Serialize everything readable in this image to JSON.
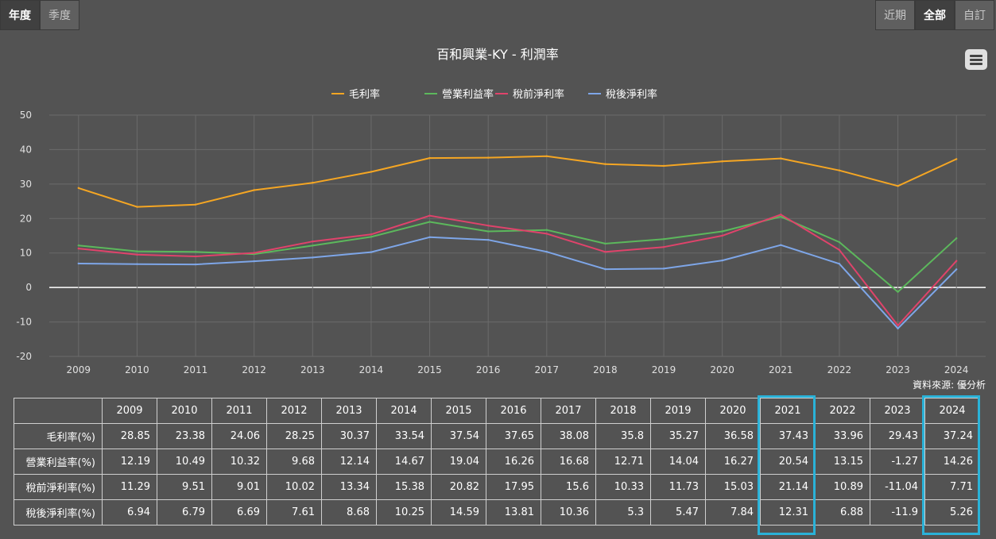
{
  "period_tabs": [
    "年度",
    "季度"
  ],
  "range_tabs": [
    "近期",
    "全部",
    "自訂"
  ],
  "source_text": "資料來源: 優分析",
  "chart_data": {
    "type": "line",
    "title": "百和興業-KY - 利潤率",
    "categories": [
      "2009",
      "2010",
      "2011",
      "2012",
      "2013",
      "2014",
      "2015",
      "2016",
      "2017",
      "2018",
      "2019",
      "2020",
      "2021",
      "2022",
      "2023",
      "2024"
    ],
    "ylim": [
      -20,
      50
    ],
    "yticks": [
      50,
      40,
      30,
      20,
      10,
      0,
      -10,
      -20
    ],
    "grid": true,
    "legend": "top-center",
    "series": [
      {
        "name": "毛利率",
        "color": "#f5a623",
        "values": [
          28.85,
          23.38,
          24.06,
          28.25,
          30.37,
          33.54,
          37.54,
          37.65,
          38.08,
          35.8,
          35.27,
          36.58,
          37.43,
          33.96,
          29.43,
          37.24
        ]
      },
      {
        "name": "營業利益率",
        "color": "#5cb85c",
        "values": [
          12.19,
          10.49,
          10.32,
          9.68,
          12.14,
          14.67,
          19.04,
          16.26,
          16.68,
          12.71,
          14.04,
          16.27,
          20.54,
          13.15,
          -1.27,
          14.26
        ]
      },
      {
        "name": "稅前淨利率",
        "color": "#e0436b",
        "values": [
          11.29,
          9.51,
          9.01,
          10.02,
          13.34,
          15.38,
          20.82,
          17.95,
          15.6,
          10.33,
          11.73,
          15.03,
          21.14,
          10.89,
          -11.04,
          7.71
        ]
      },
      {
        "name": "稅後淨利率",
        "color": "#7ea6e8",
        "values": [
          6.94,
          6.79,
          6.69,
          7.61,
          8.68,
          10.25,
          14.59,
          13.81,
          10.36,
          5.3,
          5.47,
          7.84,
          12.31,
          6.88,
          -11.9,
          5.26
        ]
      }
    ]
  },
  "table": {
    "years": [
      "2009",
      "2010",
      "2011",
      "2012",
      "2013",
      "2014",
      "2015",
      "2016",
      "2017",
      "2018",
      "2019",
      "2020",
      "2021",
      "2022",
      "2023",
      "2024"
    ],
    "rows": [
      {
        "label": "毛利率(%)",
        "values": [
          "28.85",
          "23.38",
          "24.06",
          "28.25",
          "30.37",
          "33.54",
          "37.54",
          "37.65",
          "38.08",
          "35.8",
          "35.27",
          "36.58",
          "37.43",
          "33.96",
          "29.43",
          "37.24"
        ]
      },
      {
        "label": "營業利益率(%)",
        "values": [
          "12.19",
          "10.49",
          "10.32",
          "9.68",
          "12.14",
          "14.67",
          "19.04",
          "16.26",
          "16.68",
          "12.71",
          "14.04",
          "16.27",
          "20.54",
          "13.15",
          "-1.27",
          "14.26"
        ]
      },
      {
        "label": "稅前淨利率(%)",
        "values": [
          "11.29",
          "9.51",
          "9.01",
          "10.02",
          "13.34",
          "15.38",
          "20.82",
          "17.95",
          "15.6",
          "10.33",
          "11.73",
          "15.03",
          "21.14",
          "10.89",
          "-11.04",
          "7.71"
        ]
      },
      {
        "label": "稅後淨利率(%)",
        "values": [
          "6.94",
          "6.79",
          "6.69",
          "7.61",
          "8.68",
          "10.25",
          "14.59",
          "13.81",
          "10.36",
          "5.3",
          "5.47",
          "7.84",
          "12.31",
          "6.88",
          "-11.9",
          "5.26"
        ]
      }
    ],
    "highlight_color": "#2ab2d8",
    "highlighted_years": [
      "2021",
      "2024"
    ]
  }
}
